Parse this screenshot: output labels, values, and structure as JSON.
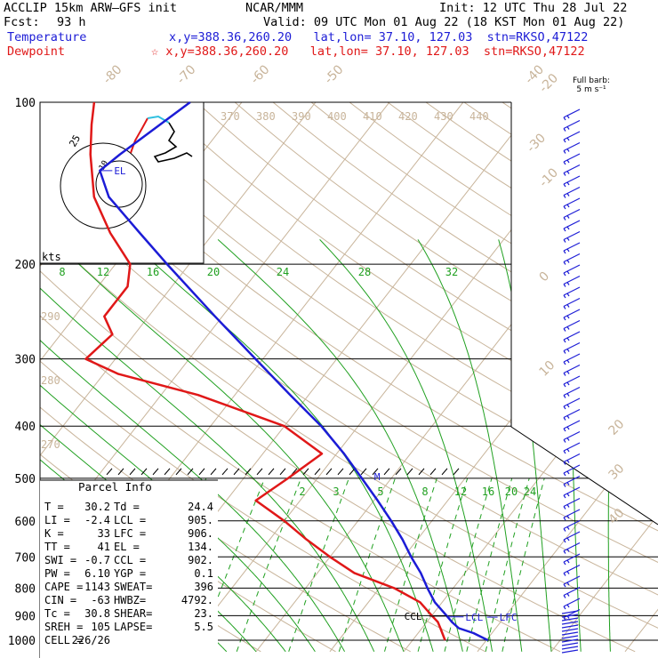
{
  "header": {
    "model": "ACCLIP 15km ARW–GFS init",
    "org": "NCAR/MMM",
    "init": "Init: 12 UTC Thu 28 Jul 22",
    "fcst_label": "Fcst:",
    "fcst_value": "93 h",
    "valid": "Valid: 09 UTC Mon 01 Aug 22 (18 KST Mon 01 Aug 22)",
    "temp_label": "Temperature",
    "dew_label": "Dewpoint",
    "temp_loc": "x,y=388.36,260.20   lat,lon= 37.10, 127.03  stn=RKSO,47122",
    "dew_loc": "☆ x,y=388.36,260.20   lat,lon= 37.10, 127.03  stn=RKSO,47122"
  },
  "barb_note": {
    "line1": "Full barb:",
    "line2": "5 m s⁻¹"
  },
  "colors": {
    "temperature": "#1c1cd6",
    "dewpoint": "#e01818",
    "isotherm": "#c8b49a",
    "mixing_ratio": "#20a020",
    "adiabat": "#c8b49a"
  },
  "chart_data": {
    "type": "line",
    "title": "",
    "y_axis": {
      "scale": "log-pressure",
      "unit": "hPa",
      "ticks": [
        100,
        200,
        300,
        400,
        500,
        600,
        700,
        800,
        900,
        1000
      ]
    },
    "isotherm_labels": [
      -80,
      -70,
      -60,
      -50,
      -40,
      -30,
      -20,
      -10,
      0,
      10,
      20,
      30,
      40
    ],
    "theta_labels": [
      370,
      380,
      390,
      400,
      410,
      420,
      430,
      440
    ],
    "theta_labels_left": [
      290,
      280,
      270
    ],
    "mixing_ratio_labels_upper": [
      8,
      12,
      16,
      20,
      24,
      28,
      32
    ],
    "mixing_ratio_labels_lower": [
      2,
      3,
      5,
      8,
      12,
      16,
      20,
      24
    ],
    "series": [
      {
        "name": "Temperature",
        "color": "#1c1cd6",
        "points": [
          [
            1000,
            30.2
          ],
          [
            970,
            27.5
          ],
          [
            950,
            25.0
          ],
          [
            925,
            23.4
          ],
          [
            900,
            22.0
          ],
          [
            850,
            19.0
          ],
          [
            800,
            16.5
          ],
          [
            750,
            14.0
          ],
          [
            700,
            11.0
          ],
          [
            650,
            8.0
          ],
          [
            600,
            4.5
          ],
          [
            550,
            0.5
          ],
          [
            500,
            -4.0
          ],
          [
            450,
            -9.0
          ],
          [
            400,
            -15.0
          ],
          [
            350,
            -22.5
          ],
          [
            300,
            -31.0
          ],
          [
            250,
            -41.0
          ],
          [
            200,
            -53.0
          ],
          [
            175,
            -60.0
          ],
          [
            150,
            -68.0
          ],
          [
            134,
            -72.0
          ],
          [
            125,
            -71.0
          ],
          [
            100,
            -67.0
          ]
        ]
      },
      {
        "name": "Dewpoint",
        "color": "#e01818",
        "points": [
          [
            1000,
            24.4
          ],
          [
            950,
            22.5
          ],
          [
            925,
            21.5
          ],
          [
            900,
            20.0
          ],
          [
            850,
            17.0
          ],
          [
            800,
            12.0
          ],
          [
            750,
            5.0
          ],
          [
            700,
            0.0
          ],
          [
            650,
            -5.0
          ],
          [
            600,
            -10.0
          ],
          [
            550,
            -16.0
          ],
          [
            500,
            -14.0
          ],
          [
            450,
            -12.0
          ],
          [
            400,
            -20.0
          ],
          [
            350,
            -35.0
          ],
          [
            320,
            -48.0
          ],
          [
            300,
            -54.0
          ],
          [
            270,
            -53.0
          ],
          [
            250,
            -56.0
          ],
          [
            220,
            -56.0
          ],
          [
            200,
            -58.0
          ],
          [
            175,
            -64.0
          ],
          [
            150,
            -70.0
          ],
          [
            125,
            -75.0
          ],
          [
            110,
            -78.0
          ],
          [
            100,
            -80.0
          ]
        ]
      }
    ],
    "markers": [
      {
        "label": "EL",
        "pressure": 134
      },
      {
        "label": "M",
        "pressure": 500
      },
      {
        "label": "CCL",
        "pressure": 902
      },
      {
        "label": "LCL",
        "pressure": 905
      },
      {
        "label": "LFC",
        "pressure": 906
      }
    ],
    "hodograph": {
      "label": "kts",
      "ring_labels": [
        25,
        10
      ]
    }
  },
  "parcel_info": {
    "title": "Parcel Info",
    "rows": [
      [
        "T    =",
        "30.2",
        "Td   =",
        "24.4"
      ],
      [
        "LI   =",
        "-2.4",
        "LCL  =",
        "905."
      ],
      [
        "K    =",
        "33",
        "LFC  =",
        "906."
      ],
      [
        "TT   =",
        "41",
        "EL   =",
        "134."
      ],
      [
        "SWI  =",
        "-0.7",
        "CCL  =",
        "902."
      ],
      [
        "PW   =",
        "6.10",
        "YGP  =",
        "0.1"
      ],
      [
        "CAPE =",
        "1143",
        "SWEAT=",
        "396"
      ],
      [
        "CIN  =",
        "-63",
        "HWBZ=",
        "4792."
      ],
      [
        "Tc   =",
        "30.8",
        "SHEAR=",
        "23."
      ],
      [
        "SREH =",
        "105",
        "LAPSE=",
        "5.5"
      ],
      [
        "CELL =",
        "226/26",
        "",
        ""
      ]
    ]
  }
}
